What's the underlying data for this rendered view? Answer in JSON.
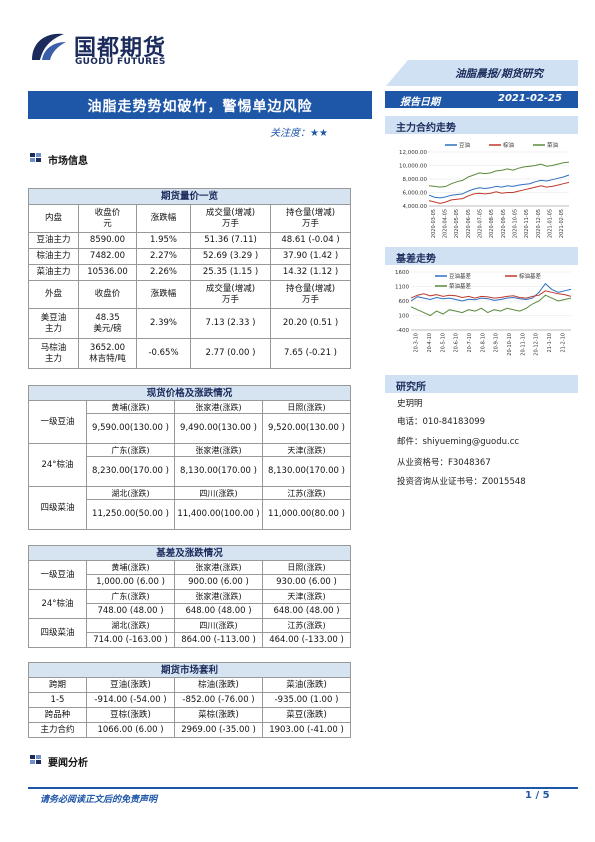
{
  "header": {
    "logo_cn": "国都期货",
    "logo_en": "GUODU FUTURES",
    "series_title": "油脂晨报/期货研究",
    "title": "油脂走势势如破竹，警惕单边风险",
    "attention_label": "关注度：",
    "attention_stars": "★★",
    "report_date_label": "报告日期",
    "report_date": "2021-02-25"
  },
  "sections": {
    "market_info": "市场信息",
    "main_contract_trend": "主力合约走势",
    "basis_trend": "基差走势",
    "research_institute": "研究所",
    "news_analysis": "要闻分析"
  },
  "futures_table": {
    "title": "期货量价一览",
    "header1": [
      "内盘",
      "收盘价",
      "涨跌幅",
      "成交量(增减)",
      "持仓量(增减)"
    ],
    "header1_sub": [
      "",
      "元",
      "",
      "万手",
      "万手"
    ],
    "rows1": [
      [
        "豆油主力",
        "8590.00",
        "1.95%",
        "51.36 (7.11)",
        "48.61 (-0.04 )"
      ],
      [
        "棕油主力",
        "7482.00",
        "2.27%",
        "52.69 (3.29 )",
        "37.90 (1.42 )"
      ],
      [
        "菜油主力",
        "10536.00",
        "2.26%",
        "25.35 (1.15 )",
        "14.32 (1.12 )"
      ]
    ],
    "header2": [
      "外盘",
      "收盘价",
      "涨跌幅",
      "成交量(增减)",
      "持仓量(增减)"
    ],
    "header2_sub": [
      "",
      "",
      "",
      "万手",
      "万手"
    ],
    "rows2": [
      {
        "name1": "美豆油",
        "name2": "主力",
        "price1": "48.35",
        "price2": "美元/磅",
        "change": "2.39%",
        "volume": "7.13 (2.33 )",
        "oi": "20.20 (0.51 )"
      },
      {
        "name1": "马棕油",
        "name2": "主力",
        "price1": "3652.00",
        "price2": "林吉特/吨",
        "change": "-0.65%",
        "volume": "2.77 (0.00 )",
        "oi": "7.65 (-0.21 )"
      }
    ]
  },
  "spot_table": {
    "title": "现货价格及涨跌情况",
    "blocks": [
      {
        "name": "一级豆油",
        "places": [
          "黄埔(涨跌)",
          "张家港(涨跌)",
          "日照(涨跌)"
        ],
        "values": [
          "9,590.00(130.00 )",
          "9,490.00(130.00 )",
          "9,520.00(130.00 )"
        ]
      },
      {
        "name": "24°棕油",
        "places": [
          "广东(涨跌)",
          "张家港(涨跌)",
          "天津(涨跌)"
        ],
        "values": [
          "8,230.00(170.00 )",
          "8,130.00(170.00 )",
          "8,130.00(170.00 )"
        ]
      },
      {
        "name": "四级菜油",
        "places": [
          "湖北(涨跌)",
          "四川(涨跌)",
          "江苏(涨跌)"
        ],
        "values": [
          "11,250.00(50.00 )",
          "11,400.00(100.00 )",
          "11,000.00(80.00 )"
        ]
      }
    ]
  },
  "basis_table": {
    "title": "基差及涨跌情况",
    "blocks": [
      {
        "name": "一级豆油",
        "places": [
          "黄埔(涨跌)",
          "张家港(涨跌)",
          "日照(涨跌)"
        ],
        "values": [
          "1,000.00 (6.00 )",
          "900.00 (6.00 )",
          "930.00 (6.00 )"
        ]
      },
      {
        "name": "24°棕油",
        "places": [
          "广东(涨跌)",
          "张家港(涨跌)",
          "天津(涨跌)"
        ],
        "values": [
          "748.00 (48.00 )",
          "648.00 (48.00 )",
          "648.00 (48.00 )"
        ]
      },
      {
        "name": "四级菜油",
        "places": [
          "湖北(涨跌)",
          "四川(涨跌)",
          "江苏(涨跌)"
        ],
        "values": [
          "714.00 (-163.00 )",
          "864.00 (-113.00 )",
          "464.00 (-133.00 )"
        ]
      }
    ]
  },
  "arb_table": {
    "title": "期货市场套利",
    "row1": [
      "跨期",
      "豆油(涨跌)",
      "棕油(涨跌)",
      "菜油(涨跌)"
    ],
    "row2": [
      "1-5",
      "-914.00 (-54.00 )",
      "-852.00 (-76.00 )",
      "-935.00 (1.00 )"
    ],
    "row3": [
      "跨品种",
      "豆棕(涨跌)",
      "菜棕(涨跌)",
      "菜豆(涨跌)"
    ],
    "row4": [
      "主力合约",
      "1066.00 (6.00 )",
      "2969.00 (-35.00 )",
      "1903.00 (-41.00 )"
    ]
  },
  "research": {
    "name": "史玥明",
    "phone": "电话：010-84183099",
    "email": "邮件：shiyueming@guodu.cc",
    "qualification": "从业资格号：F3048367",
    "consulting": "投资咨询从业证书号：Z0015548"
  },
  "footer": {
    "disclaimer": "请务必阅读正文后的免责声明",
    "page": "1 / 5"
  },
  "chart_data": [
    {
      "type": "line",
      "legend": "top",
      "yticks": [
        "12,000.00",
        "10,000.00",
        "8,000.00",
        "6,000.00",
        "4,000.00"
      ],
      "ylim": [
        4000,
        12000
      ],
      "xticks": [
        "2020-03-05",
        "2020-04-05",
        "2020-05-05",
        "2020-06-05",
        "2020-07-05",
        "2020-08-05",
        "2020-09-05",
        "2020-10-05",
        "2020-11-05",
        "2020-12-05",
        "2021-01-05",
        "2021-02-05"
      ],
      "series": [
        {
          "name": "豆油",
          "color": "#2e6fc2",
          "values": [
            5600,
            5300,
            5200,
            5350,
            5600,
            5700,
            5800,
            6200,
            6500,
            6700,
            6600,
            6700,
            6900,
            6800,
            7000,
            6900,
            7100,
            7200,
            7300,
            7600,
            7800,
            7700,
            7900,
            8100,
            8300,
            8600
          ]
        },
        {
          "name": "棕油",
          "color": "#c0392b",
          "values": [
            4800,
            4600,
            4400,
            4600,
            4900,
            5000,
            5100,
            5500,
            5800,
            5900,
            5800,
            5900,
            6100,
            5900,
            6000,
            6000,
            6200,
            6400,
            6600,
            6800,
            7000,
            6800,
            6900,
            7100,
            7300,
            7500
          ]
        },
        {
          "name": "菜油",
          "color": "#5b8a3c",
          "values": [
            7000,
            6900,
            6800,
            6900,
            7300,
            7600,
            7800,
            8300,
            8600,
            8900,
            8800,
            8900,
            9200,
            9300,
            9500,
            9300,
            9600,
            9800,
            9900,
            10000,
            10200,
            9900,
            10000,
            10200,
            10400,
            10500
          ]
        }
      ]
    },
    {
      "type": "line",
      "legend": "top",
      "yticks": [
        "1600",
        "1100",
        "600",
        "100",
        "-400"
      ],
      "ylim": [
        -400,
        1600
      ],
      "xticks": [
        "20-3-10",
        "20-4-10",
        "20-5-10",
        "20-6-10",
        "20-7-10",
        "20-8-10",
        "20-9-10",
        "20-10-10",
        "20-11-10",
        "20-12-10",
        "21-1-10",
        "21-2-10"
      ],
      "series": [
        {
          "name": "豆油基差",
          "color": "#2e6fc2",
          "values": [
            600,
            750,
            700,
            650,
            720,
            680,
            700,
            650,
            600,
            660,
            640,
            700,
            680,
            620,
            650,
            700,
            720,
            680,
            650,
            700,
            900,
            1200,
            1000,
            900,
            950,
            1000
          ]
        },
        {
          "name": "棕油基差",
          "color": "#c0392b",
          "values": [
            700,
            800,
            850,
            780,
            820,
            760,
            800,
            780,
            720,
            760,
            700,
            760,
            740,
            700,
            720,
            760,
            780,
            720,
            700,
            760,
            800,
            950,
            900,
            850,
            820,
            760
          ]
        },
        {
          "name": "菜油基差",
          "color": "#5b8a3c",
          "values": [
            400,
            300,
            200,
            100,
            250,
            150,
            300,
            250,
            200,
            300,
            250,
            350,
            200,
            300,
            250,
            350,
            300,
            250,
            350,
            500,
            600,
            800,
            700,
            600,
            650,
            700
          ]
        }
      ]
    }
  ]
}
